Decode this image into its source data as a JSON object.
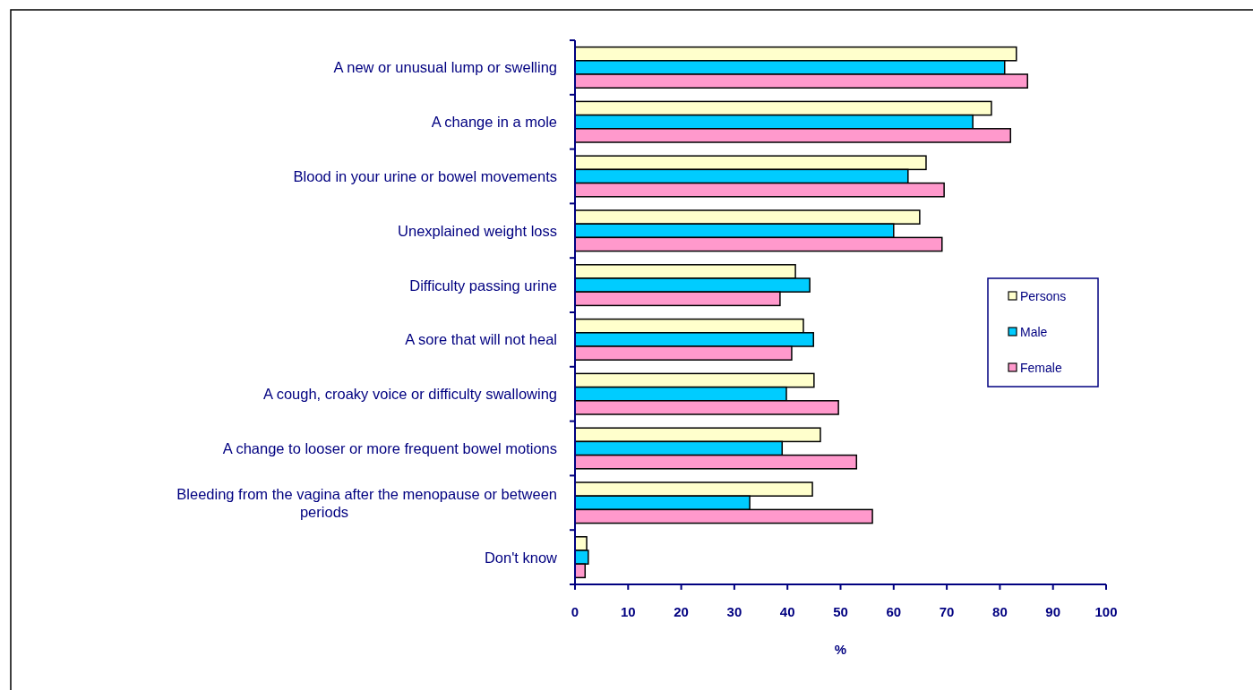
{
  "chart_data": {
    "type": "bar",
    "orientation": "horizontal",
    "xlabel": "%",
    "categories": [
      "A new or unusual lump or swelling",
      "A change in a mole ",
      "Blood in your urine or bowel movements ",
      "Unexplained weight loss",
      "Difficulty passing urine",
      "A sore that will not heal",
      "A cough, croaky voice or difficulty swallowing ",
      "A change to looser or more frequent bowel motions",
      "Bleeding from the vagina after the menopause or between periods",
      "Don't know"
    ],
    "series": [
      {
        "name": "Persons",
        "color": "#ffffcc",
        "values": [
          83.1,
          78.4,
          66.1,
          64.9,
          41.5,
          43.0,
          45.0,
          46.2,
          44.7,
          2.2
        ]
      },
      {
        "name": "Male",
        "color": "#00ccff",
        "values": [
          80.9,
          74.9,
          62.7,
          60.0,
          44.2,
          44.9,
          39.8,
          39.0,
          32.9,
          2.5
        ]
      },
      {
        "name": "Female",
        "color": "#ff99cc",
        "values": [
          85.2,
          82.0,
          69.5,
          69.1,
          38.6,
          40.8,
          49.6,
          53.0,
          56.0,
          1.9
        ]
      }
    ],
    "xlim": [
      0,
      100
    ],
    "xticks": [
      0,
      10,
      20,
      30,
      40,
      50,
      60,
      70,
      80,
      90,
      100
    ],
    "grid": false,
    "legend": "right"
  }
}
